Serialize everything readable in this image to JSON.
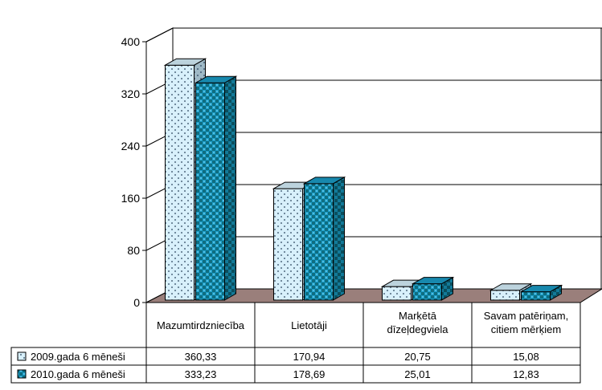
{
  "chart_data": {
    "type": "bar",
    "title": "",
    "xlabel": "",
    "ylabel": "",
    "ylim": [
      0,
      400
    ],
    "yticks": [
      "0",
      "80",
      "160",
      "240",
      "320",
      "400"
    ],
    "categories": [
      [
        "Mazumtirdzniecība"
      ],
      [
        "Lietotāji"
      ],
      [
        "Marķētā",
        "dīzeļdegviela"
      ],
      [
        "Savam patēriņam,",
        "citiem mērķiem"
      ]
    ],
    "series": [
      {
        "name": "2009.gada 6 mēneši",
        "values": [
          360.33,
          170.94,
          20.75,
          15.08
        ],
        "labels": [
          "360,33",
          "170,94",
          "20,75",
          "15,08"
        ],
        "color": "#d8f0fb"
      },
      {
        "name": "2010.gada 6 mēneši",
        "values": [
          333.23,
          178.69,
          25.01,
          12.83
        ],
        "labels": [
          "333,23",
          "178,69",
          "25,01",
          "12,83"
        ],
        "color": "#1b9ec9"
      }
    ],
    "style": "3d-bar-with-data-table",
    "grid": true,
    "legend": "data-table"
  }
}
